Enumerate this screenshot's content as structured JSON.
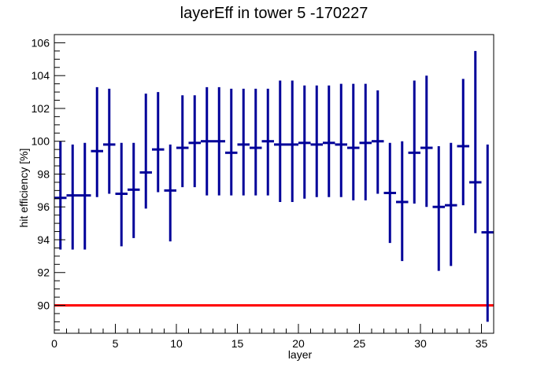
{
  "chart_data": {
    "type": "scatter",
    "title": "layerEff in tower 5 -170227",
    "xlabel": "layer",
    "ylabel": "hit efficiency [%]",
    "xlim": [
      0,
      36
    ],
    "ylim": [
      88.3,
      106.5
    ],
    "x_ticks": [
      0,
      5,
      10,
      15,
      20,
      25,
      30,
      35
    ],
    "y_ticks": [
      90,
      92,
      94,
      96,
      98,
      100,
      102,
      104,
      106
    ],
    "grid": false,
    "legend": "none",
    "threshold_line": {
      "y": 90,
      "color": "#ff0000"
    },
    "marker_color": "#000099",
    "points": [
      {
        "x": 0.5,
        "y": 96.55,
        "ylo": 93.4,
        "yhi": 100.0
      },
      {
        "x": 1.5,
        "y": 96.7,
        "ylo": 93.4,
        "yhi": 99.8
      },
      {
        "x": 2.5,
        "y": 96.7,
        "ylo": 93.4,
        "yhi": 99.9
      },
      {
        "x": 3.5,
        "y": 99.4,
        "ylo": 96.6,
        "yhi": 103.3
      },
      {
        "x": 4.5,
        "y": 99.8,
        "ylo": 96.8,
        "yhi": 103.2
      },
      {
        "x": 5.5,
        "y": 96.8,
        "ylo": 93.6,
        "yhi": 99.9
      },
      {
        "x": 6.5,
        "y": 97.05,
        "ylo": 94.1,
        "yhi": 99.9
      },
      {
        "x": 7.5,
        "y": 98.1,
        "ylo": 95.9,
        "yhi": 102.9
      },
      {
        "x": 8.5,
        "y": 99.5,
        "ylo": 96.9,
        "yhi": 103.0
      },
      {
        "x": 9.5,
        "y": 97.0,
        "ylo": 93.9,
        "yhi": 99.8
      },
      {
        "x": 10.5,
        "y": 99.6,
        "ylo": 97.2,
        "yhi": 102.8
      },
      {
        "x": 11.5,
        "y": 99.9,
        "ylo": 97.2,
        "yhi": 102.8
      },
      {
        "x": 12.5,
        "y": 100.0,
        "ylo": 96.7,
        "yhi": 103.3
      },
      {
        "x": 13.5,
        "y": 100.0,
        "ylo": 96.7,
        "yhi": 103.3
      },
      {
        "x": 14.5,
        "y": 99.3,
        "ylo": 96.7,
        "yhi": 103.2
      },
      {
        "x": 15.5,
        "y": 99.8,
        "ylo": 96.7,
        "yhi": 103.2
      },
      {
        "x": 16.5,
        "y": 99.6,
        "ylo": 96.7,
        "yhi": 103.2
      },
      {
        "x": 17.5,
        "y": 100.0,
        "ylo": 96.7,
        "yhi": 103.2
      },
      {
        "x": 18.5,
        "y": 99.8,
        "ylo": 96.3,
        "yhi": 103.7
      },
      {
        "x": 19.5,
        "y": 99.8,
        "ylo": 96.3,
        "yhi": 103.7
      },
      {
        "x": 20.5,
        "y": 99.9,
        "ylo": 96.5,
        "yhi": 103.4
      },
      {
        "x": 21.5,
        "y": 99.8,
        "ylo": 96.6,
        "yhi": 103.4
      },
      {
        "x": 22.5,
        "y": 99.9,
        "ylo": 96.6,
        "yhi": 103.4
      },
      {
        "x": 23.5,
        "y": 99.8,
        "ylo": 96.6,
        "yhi": 103.5
      },
      {
        "x": 24.5,
        "y": 99.6,
        "ylo": 96.4,
        "yhi": 103.5
      },
      {
        "x": 25.5,
        "y": 99.9,
        "ylo": 96.4,
        "yhi": 103.5
      },
      {
        "x": 26.5,
        "y": 100.0,
        "ylo": 96.8,
        "yhi": 103.1
      },
      {
        "x": 27.5,
        "y": 96.85,
        "ylo": 93.8,
        "yhi": 99.9
      },
      {
        "x": 28.5,
        "y": 96.3,
        "ylo": 92.7,
        "yhi": 100.0
      },
      {
        "x": 29.5,
        "y": 99.3,
        "ylo": 96.2,
        "yhi": 103.7
      },
      {
        "x": 30.5,
        "y": 99.6,
        "ylo": 96.0,
        "yhi": 104.0
      },
      {
        "x": 31.5,
        "y": 96.0,
        "ylo": 92.1,
        "yhi": 99.7
      },
      {
        "x": 32.5,
        "y": 96.1,
        "ylo": 92.4,
        "yhi": 99.9
      },
      {
        "x": 33.5,
        "y": 99.7,
        "ylo": 96.1,
        "yhi": 103.8
      },
      {
        "x": 34.5,
        "y": 97.5,
        "ylo": 94.4,
        "yhi": 105.5
      },
      {
        "x": 35.5,
        "y": 94.45,
        "ylo": 89.0,
        "yhi": 99.8
      }
    ]
  }
}
